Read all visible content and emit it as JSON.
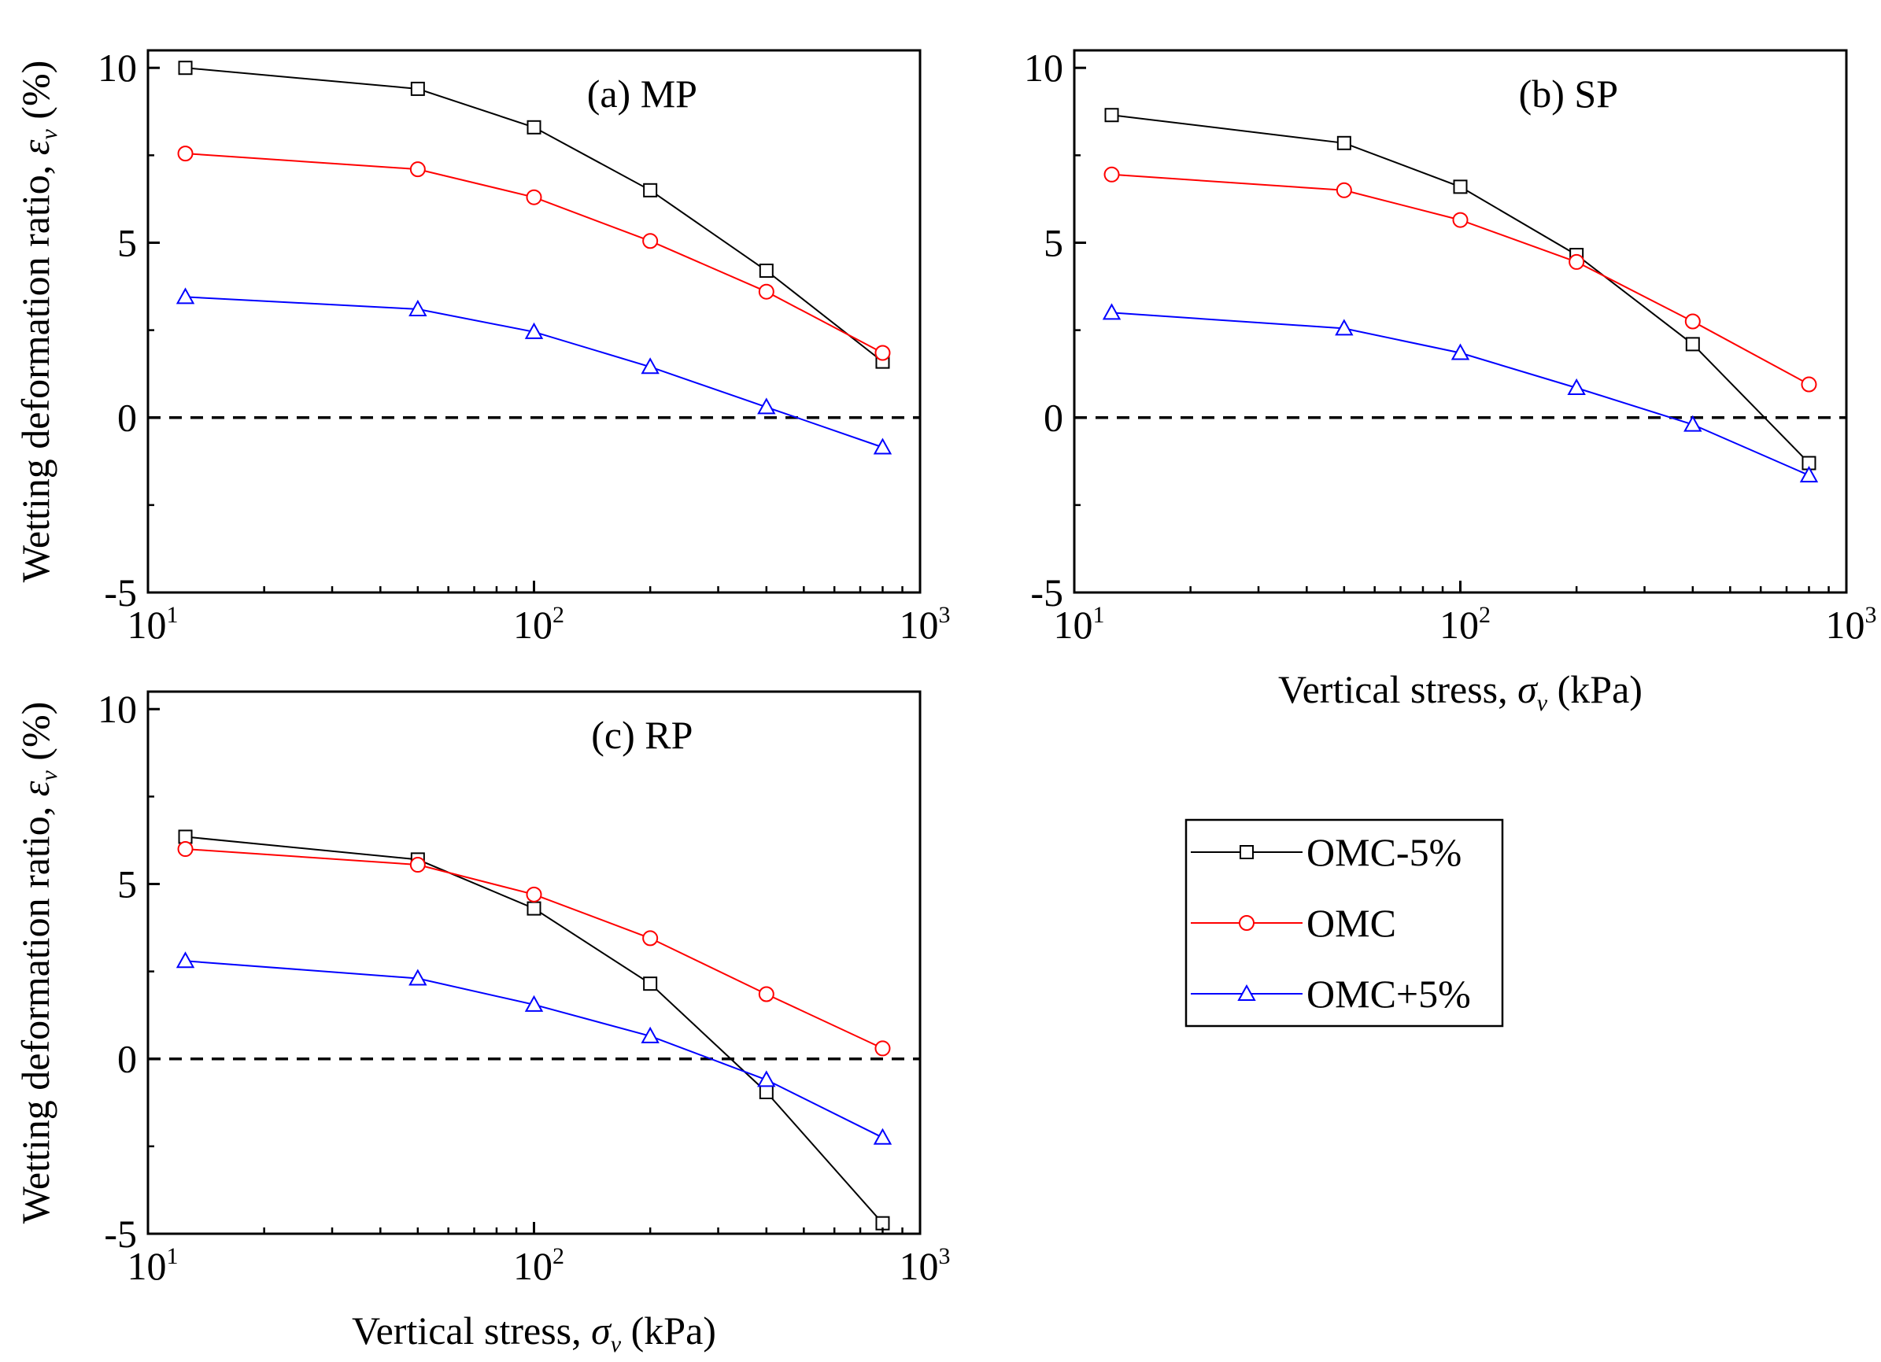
{
  "figure": {
    "legend_entries": [
      {
        "label": "OMC-5%",
        "color": "#000000",
        "marker": "square"
      },
      {
        "label": "OMC",
        "color": "#ff0000",
        "marker": "circle"
      },
      {
        "label": "OMC+5%",
        "color": "#0000ff",
        "marker": "triangle"
      }
    ]
  },
  "chart_data": [
    {
      "type": "line",
      "title": "(a) MP",
      "xlabel": {
        "prefix": "Vertical stress, ",
        "symbol": "σ",
        "sub": "v",
        "suffix": " (kPa)"
      },
      "ylabel": {
        "prefix": "Wetting deformation ratio, ",
        "symbol": "ε",
        "sub": "v",
        "suffix": "  (%)"
      },
      "show_xlabel": false,
      "xscale": "log",
      "xlim": [
        10,
        1000
      ],
      "ylim": [
        -5,
        10.5
      ],
      "xticks": [
        {
          "base": "10",
          "exp": "1"
        },
        {
          "base": "10",
          "exp": "2"
        },
        {
          "base": "10",
          "exp": "3"
        }
      ],
      "yticks": [
        "-5",
        "0",
        "5",
        "10"
      ],
      "x": [
        12.5,
        50,
        100,
        200,
        400,
        800
      ],
      "series": [
        {
          "name": "OMC-5%",
          "values": [
            10.0,
            9.4,
            8.3,
            6.5,
            4.2,
            1.6
          ]
        },
        {
          "name": "OMC",
          "values": [
            7.55,
            7.1,
            6.3,
            5.05,
            3.6,
            1.85
          ]
        },
        {
          "name": "OMC+5%",
          "values": [
            3.45,
            3.1,
            2.45,
            1.45,
            0.3,
            -0.85
          ]
        }
      ],
      "reference_line": 0
    },
    {
      "type": "line",
      "title": "(b) SP",
      "xlabel": {
        "prefix": "Vertical stress, ",
        "symbol": "σ",
        "sub": "v",
        "suffix": " (kPa)"
      },
      "ylabel": {
        "prefix": "",
        "symbol": "",
        "sub": "",
        "suffix": ""
      },
      "show_xlabel": true,
      "xscale": "log",
      "xlim": [
        10,
        1000
      ],
      "ylim": [
        -5,
        10.5
      ],
      "xticks": [
        {
          "base": "10",
          "exp": "1"
        },
        {
          "base": "10",
          "exp": "2"
        },
        {
          "base": "10",
          "exp": "3"
        }
      ],
      "yticks": [
        "-5",
        "0",
        "5",
        "10"
      ],
      "x": [
        12.5,
        50,
        100,
        200,
        400,
        800
      ],
      "series": [
        {
          "name": "OMC-5%",
          "values": [
            8.65,
            7.85,
            6.6,
            4.65,
            2.1,
            -1.3
          ]
        },
        {
          "name": "OMC",
          "values": [
            6.95,
            6.5,
            5.65,
            4.45,
            2.75,
            0.95
          ]
        },
        {
          "name": "OMC+5%",
          "values": [
            3.0,
            2.55,
            1.85,
            0.85,
            -0.2,
            -1.65
          ]
        }
      ],
      "reference_line": 0
    },
    {
      "type": "line",
      "title": "(c) RP",
      "xlabel": {
        "prefix": "Vertical stress, ",
        "symbol": "σ",
        "sub": "v",
        "suffix": " (kPa)"
      },
      "ylabel": {
        "prefix": "Wetting deformation ratio, ",
        "symbol": "ε",
        "sub": "v",
        "suffix": "  (%)"
      },
      "show_xlabel": true,
      "xscale": "log",
      "xlim": [
        10,
        1000
      ],
      "ylim": [
        -5,
        10.5
      ],
      "xticks": [
        {
          "base": "10",
          "exp": "1"
        },
        {
          "base": "10",
          "exp": "2"
        },
        {
          "base": "10",
          "exp": "3"
        }
      ],
      "yticks": [
        "-5",
        "0",
        "5",
        "10"
      ],
      "x": [
        12.5,
        50,
        100,
        200,
        400,
        800
      ],
      "series": [
        {
          "name": "OMC-5%",
          "values": [
            6.35,
            5.7,
            4.3,
            2.15,
            -0.95,
            -4.7
          ]
        },
        {
          "name": "OMC",
          "values": [
            6.0,
            5.55,
            4.7,
            3.45,
            1.85,
            0.3
          ]
        },
        {
          "name": "OMC+5%",
          "values": [
            2.8,
            2.3,
            1.55,
            0.65,
            -0.6,
            -2.25
          ]
        }
      ],
      "reference_line": 0
    }
  ]
}
